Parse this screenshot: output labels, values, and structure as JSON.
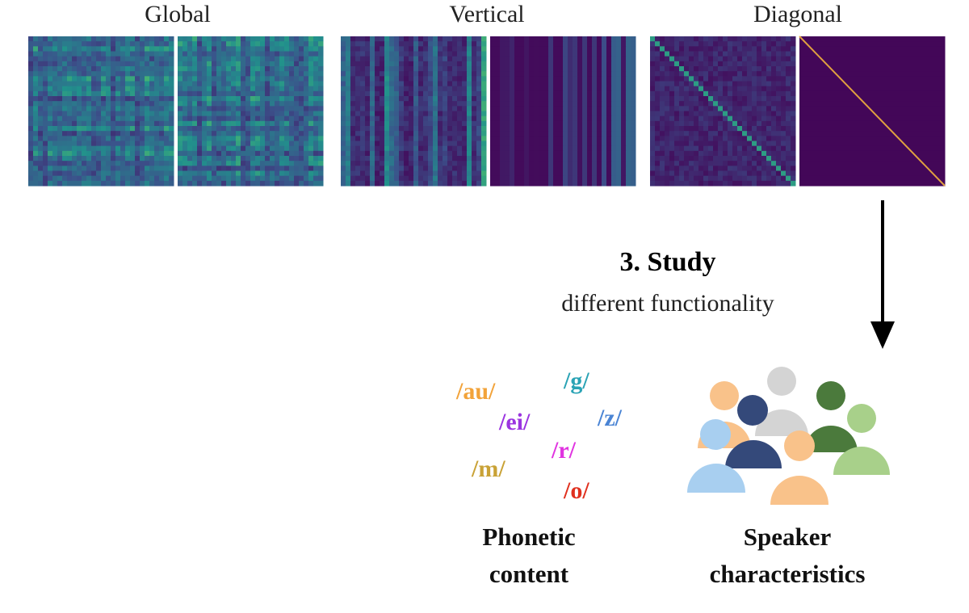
{
  "panels": {
    "global": "Global",
    "vertical": "Vertical",
    "diagonal": "Diagonal"
  },
  "study": {
    "title": "3. Study",
    "subtitle": "different functionality"
  },
  "phonemes": [
    "/au/",
    "/g/",
    "/ei/",
    "/z/",
    "/r/",
    "/m/",
    "/o/"
  ],
  "phonetic": {
    "line1": "Phonetic",
    "line2": "content"
  },
  "speaker": {
    "line1": "Speaker",
    "line2": "characteristics"
  }
}
